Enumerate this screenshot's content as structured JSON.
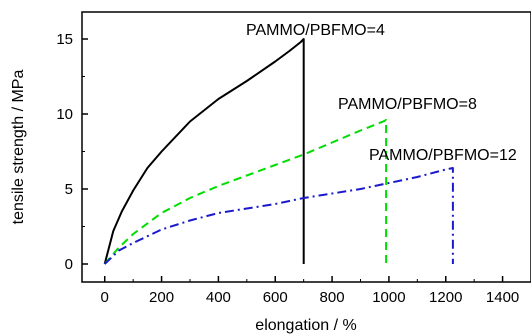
{
  "chart_data": {
    "type": "line",
    "xlabel": "elongation / %",
    "ylabel": "tensile strength / MPa",
    "xlim": [
      -80,
      1500
    ],
    "ylim": [
      -1.2,
      16.8
    ],
    "xticks": [
      0,
      200,
      400,
      600,
      800,
      1000,
      1200,
      1400
    ],
    "yticks": [
      0,
      5,
      10,
      15
    ],
    "grid": false,
    "series": [
      {
        "name": "PAMMO/PBFMO=4",
        "color": "#000000",
        "dash": "solid",
        "x": [
          0,
          30,
          60,
          100,
          150,
          200,
          300,
          400,
          500,
          600,
          650,
          690,
          700,
          700
        ],
        "y": [
          0,
          2.2,
          3.5,
          4.9,
          6.4,
          7.5,
          9.5,
          11.0,
          12.2,
          13.5,
          14.2,
          14.8,
          15.0,
          0
        ]
      },
      {
        "name": "PAMMO/PBFMO=8",
        "color": "#00dd00",
        "dash": "dashed",
        "x": [
          0,
          50,
          100,
          200,
          300,
          400,
          500,
          600,
          700,
          800,
          900,
          980,
          990,
          990
        ],
        "y": [
          0,
          1.1,
          2.0,
          3.4,
          4.4,
          5.2,
          5.9,
          6.6,
          7.3,
          8.1,
          8.9,
          9.5,
          9.6,
          0
        ]
      },
      {
        "name": "PAMMO/PBFMO=12",
        "color": "#1a1acc",
        "dash": "dashdot",
        "x": [
          0,
          50,
          100,
          200,
          300,
          400,
          500,
          600,
          700,
          800,
          900,
          1000,
          1100,
          1200,
          1225,
          1225
        ],
        "y": [
          0,
          0.9,
          1.4,
          2.3,
          2.9,
          3.4,
          3.7,
          4.0,
          4.4,
          4.7,
          5.0,
          5.4,
          5.8,
          6.3,
          6.4,
          0
        ]
      }
    ]
  }
}
